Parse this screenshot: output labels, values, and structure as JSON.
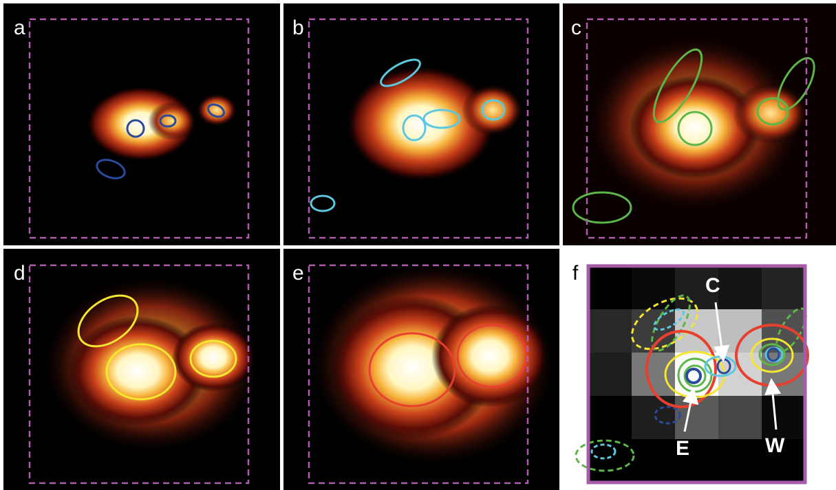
{
  "panels": [
    {
      "label": "a"
    },
    {
      "label": "b"
    },
    {
      "label": "c"
    },
    {
      "label": "d"
    },
    {
      "label": "e"
    },
    {
      "label": "f"
    }
  ],
  "annotations": [
    "C",
    "E",
    "W"
  ]
}
